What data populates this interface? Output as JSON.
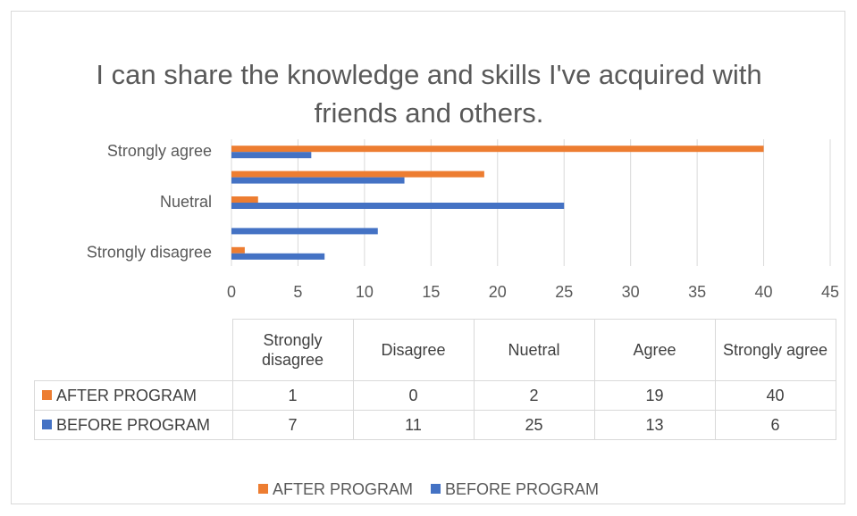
{
  "chart_data": {
    "type": "bar",
    "orientation": "horizontal",
    "title": "I can share the knowledge and skills I've acquired with friends and others.",
    "categories": [
      "Strongly disagree",
      "Disagree",
      "Nuetral",
      "Agree",
      "Strongly agree"
    ],
    "axis_label_interval": 2,
    "series": [
      {
        "name": "AFTER PROGRAM",
        "color": "#ed7d31",
        "values": [
          1,
          0,
          2,
          19,
          40
        ]
      },
      {
        "name": "BEFORE PROGRAM",
        "color": "#4472c4",
        "values": [
          7,
          11,
          25,
          13,
          6
        ]
      }
    ],
    "xlim": [
      0,
      45
    ],
    "xticks": [
      0,
      5,
      10,
      15,
      20,
      25,
      30,
      35,
      40,
      45
    ],
    "grid": true,
    "data_table": true,
    "legend": "bottom"
  }
}
